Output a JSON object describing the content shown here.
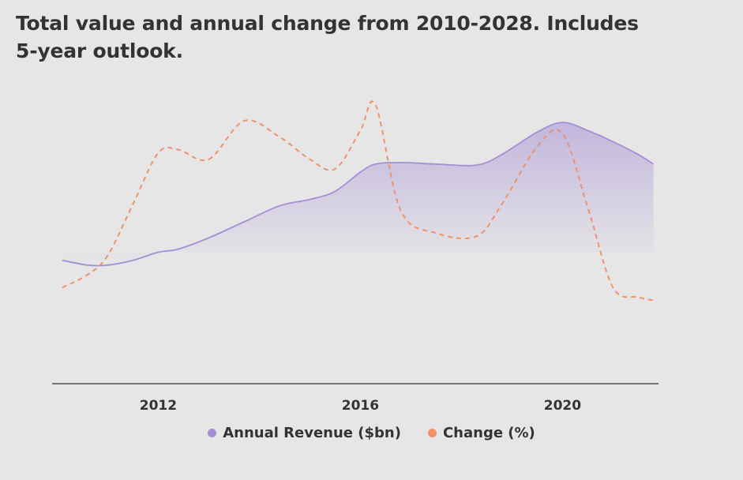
{
  "title": "Total value and annual change from 2010-2028. Includes 5-year outlook.",
  "colors": {
    "revenue": "#a48fd6",
    "change": "#f0916a",
    "axis": "#333333",
    "background": "#e6e6e6"
  },
  "chart_data": {
    "type": "area",
    "title": "Total value and annual change from 2010-2028. Includes 5-year outlook.",
    "x": [
      2010.1,
      2010.6,
      2011.0,
      2011.5,
      2012.0,
      2012.4,
      2013.0,
      2013.7,
      2014.4,
      2015.0,
      2015.5,
      2016.0,
      2016.3,
      2016.8,
      2017.5,
      2018.3,
      2018.8,
      2019.5,
      2020.0,
      2020.5,
      2021.0,
      2021.5,
      2021.8
    ],
    "xlim": [
      2009.9,
      2021.9
    ],
    "x_ticks": [
      "2012",
      "2016",
      "2020"
    ],
    "x_tick_values": [
      2012,
      2016,
      2020
    ],
    "ylim": [
      0,
      100
    ],
    "series": [
      {
        "name": "Annual Revenue ($bn)",
        "type": "area",
        "values": [
          38.5,
          37,
          37,
          38.5,
          41,
          42,
          45.5,
          50.5,
          55.5,
          57.5,
          60,
          66,
          68.5,
          69,
          68.5,
          68.2,
          71.5,
          78.5,
          81.5,
          79,
          75.5,
          71.5,
          68.5
        ]
      },
      {
        "name": "Change (%)",
        "type": "line",
        "dashed": true,
        "values": [
          30,
          34,
          40,
          56,
          72,
          73,
          70,
          82,
          77,
          70,
          67,
          79,
          87,
          54,
          47,
          46,
          56,
          74,
          78,
          55,
          30,
          27,
          26
        ]
      }
    ]
  },
  "legend": [
    {
      "label": "Annual Revenue ($bn)"
    },
    {
      "label": "Change (%)"
    }
  ]
}
